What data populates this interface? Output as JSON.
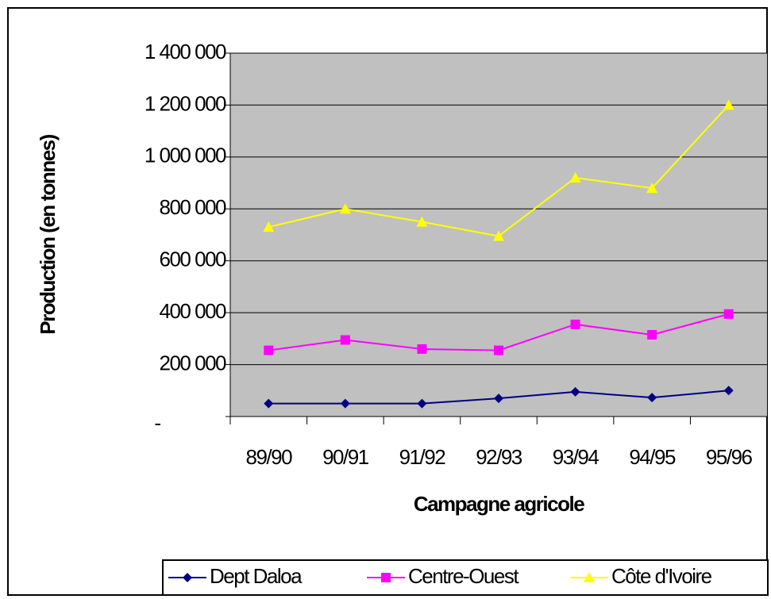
{
  "chart_data": {
    "type": "line",
    "xlabel": "Campagne agricole",
    "ylabel": "Production (en tonnes)",
    "categories": [
      "89/90",
      "90/91",
      "91/92",
      "92/93",
      "93/94",
      "94/95",
      "95/96"
    ],
    "series": [
      {
        "name": "Dept Daloa",
        "color": "#000080",
        "marker": "diamond",
        "values": [
          50000,
          50000,
          50000,
          70000,
          95000,
          73000,
          100000
        ]
      },
      {
        "name": "Centre-Ouest",
        "color": "#ff00ff",
        "marker": "square",
        "values": [
          255000,
          295000,
          260000,
          255000,
          355000,
          315000,
          395000
        ]
      },
      {
        "name": "Côte d'Ivoire",
        "color": "#ffff00",
        "marker": "triangle",
        "values": [
          730000,
          800000,
          750000,
          695000,
          920000,
          880000,
          1200000
        ]
      }
    ],
    "ylim": [
      0,
      1400000
    ],
    "yticks": [
      {
        "value": 0,
        "label": "-"
      },
      {
        "value": 200000,
        "label": "200 000"
      },
      {
        "value": 400000,
        "label": "400 000"
      },
      {
        "value": 600000,
        "label": "600 000"
      },
      {
        "value": 800000,
        "label": "800 000"
      },
      {
        "value": 1000000,
        "label": "1 000 000"
      },
      {
        "value": 1200000,
        "label": "1 200 000"
      },
      {
        "value": 1400000,
        "label": "1 400 000"
      }
    ],
    "grid": true,
    "plot_background": "#c0c0c0",
    "legend": "bottom"
  }
}
